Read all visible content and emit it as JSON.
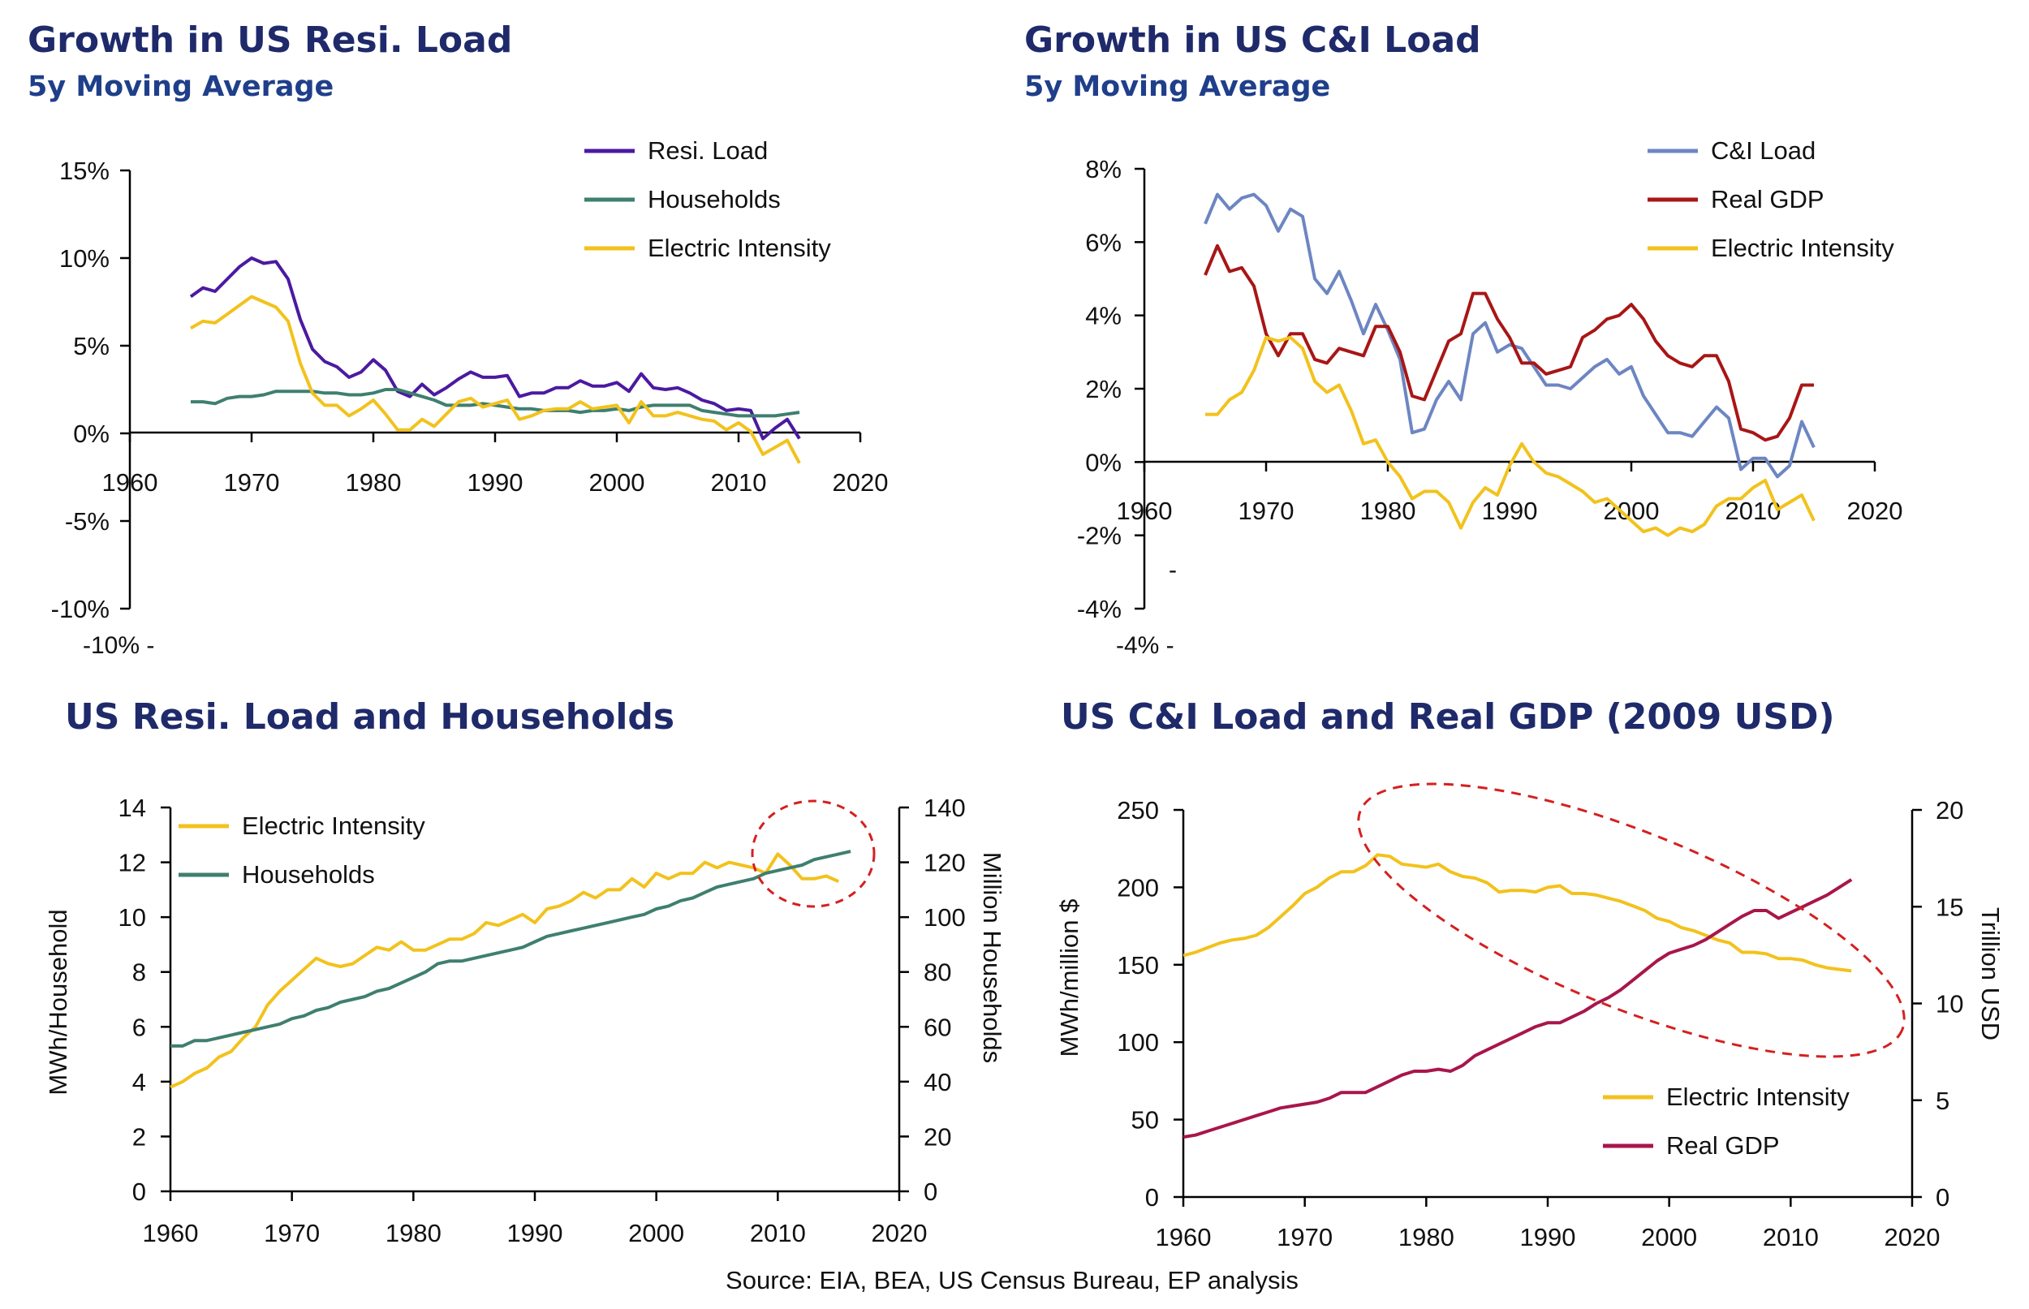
{
  "source": "Source: EIA, BEA, US Census Bureau, EP analysis",
  "colors": {
    "purple": "#4b1aa0",
    "teal": "#3f7f6f",
    "gold": "#f2c21d",
    "blue": "#6d86c2",
    "red": "#a81616",
    "crimson": "#a8164b",
    "title": "#1f2a6b",
    "circle": "#d42020"
  },
  "chart_data": [
    {
      "type": "line",
      "title": "Growth in US Resi. Load",
      "subtitle": "5y Moving Average",
      "xlim": [
        1960,
        2020
      ],
      "ylim": [
        -10,
        15
      ],
      "xticks": [
        "1960",
        "1970",
        "1980",
        "1990",
        "2000",
        "2010",
        "2020"
      ],
      "yticks": [
        "15%",
        "10%",
        "5%",
        "0%",
        "-5%",
        "-10%"
      ],
      "stray_label": "-10%  -",
      "legend": [
        "Resi. Load",
        "Households",
        "Electric Intensity"
      ],
      "series": [
        {
          "name": "Resi. Load",
          "color": "#4b1aa0",
          "x0": 1965,
          "values": [
            7.8,
            8.3,
            8.1,
            8.8,
            9.5,
            10.0,
            9.7,
            9.8,
            8.8,
            6.5,
            4.8,
            4.1,
            3.8,
            3.2,
            3.5,
            4.2,
            3.6,
            2.4,
            2.1,
            2.8,
            2.2,
            2.6,
            3.1,
            3.5,
            3.2,
            3.2,
            3.3,
            2.1,
            2.3,
            2.3,
            2.6,
            2.6,
            3.0,
            2.7,
            2.7,
            2.9,
            2.4,
            3.4,
            2.6,
            2.5,
            2.6,
            2.3,
            1.9,
            1.7,
            1.3,
            1.4,
            1.3,
            -0.3,
            0.3,
            0.8,
            -0.3
          ]
        },
        {
          "name": "Households",
          "color": "#3f7f6f",
          "x0": 1965,
          "values": [
            1.8,
            1.8,
            1.7,
            2.0,
            2.1,
            2.1,
            2.2,
            2.4,
            2.4,
            2.4,
            2.4,
            2.3,
            2.3,
            2.2,
            2.2,
            2.3,
            2.5,
            2.5,
            2.3,
            2.1,
            1.9,
            1.6,
            1.6,
            1.6,
            1.7,
            1.6,
            1.5,
            1.4,
            1.4,
            1.3,
            1.3,
            1.3,
            1.2,
            1.3,
            1.3,
            1.4,
            1.3,
            1.5,
            1.6,
            1.6,
            1.6,
            1.6,
            1.3,
            1.2,
            1.1,
            1.0,
            1.0,
            1.0,
            1.0,
            1.1,
            1.2
          ]
        },
        {
          "name": "Electric Intensity",
          "color": "#f2c21d",
          "x0": 1965,
          "values": [
            6.0,
            6.4,
            6.3,
            6.8,
            7.3,
            7.8,
            7.5,
            7.2,
            6.4,
            4.0,
            2.3,
            1.6,
            1.6,
            1.0,
            1.4,
            1.9,
            1.1,
            0.2,
            0.2,
            0.8,
            0.4,
            1.1,
            1.8,
            2.0,
            1.5,
            1.7,
            1.9,
            0.8,
            1.0,
            1.3,
            1.4,
            1.4,
            1.8,
            1.4,
            1.5,
            1.6,
            0.6,
            1.8,
            1.0,
            1.0,
            1.2,
            1.0,
            0.8,
            0.7,
            0.2,
            0.6,
            0.1,
            -1.2,
            -0.8,
            -0.4,
            -1.7
          ]
        }
      ]
    },
    {
      "type": "line",
      "title": "Growth in US C&I Load",
      "subtitle": "5y Moving Average",
      "xlim": [
        1960,
        2020
      ],
      "ylim": [
        -4,
        8
      ],
      "xticks": [
        "1960",
        "1970",
        "1980",
        "1990",
        "2000",
        "2010",
        "2020"
      ],
      "yticks": [
        "8%",
        "6%",
        "4%",
        "2%",
        "0%",
        "-2%",
        "-4%"
      ],
      "stray_label": "-4%  -",
      "legend": [
        "C&I Load",
        "Real GDP",
        "Electric Intensity"
      ],
      "series": [
        {
          "name": "C&I Load",
          "color": "#6d86c2",
          "x0": 1965,
          "values": [
            6.5,
            7.3,
            6.9,
            7.2,
            7.3,
            7.0,
            6.3,
            6.9,
            6.7,
            5.0,
            4.6,
            5.2,
            4.4,
            3.5,
            4.3,
            3.6,
            2.8,
            0.8,
            0.9,
            1.7,
            2.2,
            1.7,
            3.5,
            3.8,
            3.0,
            3.2,
            3.1,
            2.6,
            2.1,
            2.1,
            2.0,
            2.3,
            2.6,
            2.8,
            2.4,
            2.6,
            1.8,
            1.3,
            0.8,
            0.8,
            0.7,
            1.1,
            1.5,
            1.2,
            -0.2,
            0.1,
            0.1,
            -0.4,
            -0.1,
            1.1,
            0.4
          ]
        },
        {
          "name": "Real GDP",
          "color": "#a81616",
          "x0": 1965,
          "values": [
            5.1,
            5.9,
            5.2,
            5.3,
            4.8,
            3.5,
            2.9,
            3.5,
            3.5,
            2.8,
            2.7,
            3.1,
            3.0,
            2.9,
            3.7,
            3.7,
            3.0,
            1.8,
            1.7,
            2.5,
            3.3,
            3.5,
            4.6,
            4.6,
            3.9,
            3.4,
            2.7,
            2.7,
            2.4,
            2.5,
            2.6,
            3.4,
            3.6,
            3.9,
            4.0,
            4.3,
            3.9,
            3.3,
            2.9,
            2.7,
            2.6,
            2.9,
            2.9,
            2.2,
            0.9,
            0.8,
            0.6,
            0.7,
            1.2,
            2.1,
            2.1
          ]
        },
        {
          "name": "Electric Intensity",
          "color": "#f2c21d",
          "x0": 1965,
          "values": [
            1.3,
            1.3,
            1.7,
            1.9,
            2.5,
            3.4,
            3.3,
            3.4,
            3.1,
            2.2,
            1.9,
            2.1,
            1.4,
            0.5,
            0.6,
            0.0,
            -0.4,
            -1.0,
            -0.8,
            -0.8,
            -1.1,
            -1.8,
            -1.1,
            -0.7,
            -0.9,
            -0.1,
            0.5,
            0.0,
            -0.3,
            -0.4,
            -0.6,
            -0.8,
            -1.1,
            -1.0,
            -1.3,
            -1.6,
            -1.9,
            -1.8,
            -2.0,
            -1.8,
            -1.9,
            -1.7,
            -1.2,
            -1.0,
            -1.0,
            -0.7,
            -0.5,
            -1.3,
            -1.1,
            -0.9,
            -1.6
          ]
        }
      ]
    },
    {
      "type": "line",
      "title": "US Resi. Load and Households",
      "xlim": [
        1960,
        2020
      ],
      "ylim": [
        0,
        14
      ],
      "y2lim": [
        0,
        140
      ],
      "xticks": [
        "1960",
        "1970",
        "1980",
        "1990",
        "2000",
        "2010",
        "2020"
      ],
      "yticks": [
        "14",
        "12",
        "10",
        "8",
        "6",
        "4",
        "2",
        "0"
      ],
      "y2ticks": [
        "140",
        "120",
        "100",
        "80",
        "60",
        "40",
        "20",
        "0"
      ],
      "ylabel": "MWh/Household",
      "y2label": "Million Households",
      "legend": [
        "Electric Intensity",
        "Households"
      ],
      "series": [
        {
          "name": "Electric Intensity",
          "axis": "left",
          "color": "#f2c21d",
          "x0": 1960,
          "values": [
            3.8,
            4.0,
            4.3,
            4.5,
            4.9,
            5.1,
            5.6,
            6.0,
            6.8,
            7.3,
            7.7,
            8.1,
            8.5,
            8.3,
            8.2,
            8.3,
            8.6,
            8.9,
            8.8,
            9.1,
            8.8,
            8.8,
            9.0,
            9.2,
            9.2,
            9.4,
            9.8,
            9.7,
            9.9,
            10.1,
            9.8,
            10.3,
            10.4,
            10.6,
            10.9,
            10.7,
            11.0,
            11.0,
            11.4,
            11.1,
            11.6,
            11.4,
            11.6,
            11.6,
            12.0,
            11.8,
            12.0,
            11.9,
            11.8,
            11.6,
            12.3,
            11.9,
            11.4,
            11.4,
            11.5,
            11.3
          ]
        },
        {
          "name": "Households",
          "axis": "right",
          "color": "#3f7f6f",
          "x0": 1960,
          "values": [
            53,
            53,
            55,
            55,
            56,
            57,
            58,
            59,
            60,
            61,
            63,
            64,
            66,
            67,
            69,
            70,
            71,
            73,
            74,
            76,
            78,
            80,
            83,
            84,
            84,
            85,
            86,
            87,
            88,
            89,
            91,
            93,
            94,
            95,
            96,
            97,
            98,
            99,
            100,
            101,
            103,
            104,
            106,
            107,
            109,
            111,
            112,
            113,
            114,
            116,
            117,
            118,
            119,
            121,
            122,
            123,
            124
          ]
        }
      ]
    },
    {
      "type": "line",
      "title": "US C&I Load and Real GDP (2009 USD)",
      "xlim": [
        1960,
        2020
      ],
      "ylim": [
        0,
        250
      ],
      "y2lim": [
        0,
        20
      ],
      "xticks": [
        "1960",
        "1970",
        "1980",
        "1990",
        "2000",
        "2010",
        "2020"
      ],
      "yticks": [
        "250",
        "200",
        "150",
        "100",
        "50",
        "0"
      ],
      "y2ticks": [
        "20",
        "15",
        "10",
        "5",
        "0"
      ],
      "ylabel": "MWh/million $",
      "y2label": "Trillion USD",
      "legend": [
        "Electric Intensity",
        "Real GDP"
      ],
      "series": [
        {
          "name": "Electric Intensity",
          "axis": "left",
          "color": "#f2c21d",
          "x0": 1960,
          "values": [
            156,
            158,
            161,
            164,
            166,
            167,
            169,
            174,
            181,
            188,
            196,
            200,
            206,
            210,
            210,
            214,
            221,
            220,
            215,
            214,
            213,
            215,
            210,
            207,
            206,
            203,
            197,
            198,
            198,
            197,
            200,
            201,
            196,
            196,
            195,
            193,
            191,
            188,
            185,
            180,
            178,
            174,
            172,
            169,
            166,
            164,
            158,
            158,
            157,
            154,
            154,
            153,
            150,
            148,
            147,
            146
          ]
        },
        {
          "name": "Real GDP",
          "axis": "right",
          "color": "#a8164b",
          "x0": 1960,
          "values": [
            3.1,
            3.2,
            3.4,
            3.6,
            3.8,
            4.0,
            4.2,
            4.4,
            4.6,
            4.7,
            4.8,
            4.9,
            5.1,
            5.4,
            5.4,
            5.4,
            5.7,
            6.0,
            6.3,
            6.5,
            6.5,
            6.6,
            6.5,
            6.8,
            7.3,
            7.6,
            7.9,
            8.2,
            8.5,
            8.8,
            9.0,
            9.0,
            9.3,
            9.6,
            10.0,
            10.3,
            10.7,
            11.2,
            11.7,
            12.2,
            12.6,
            12.8,
            13.0,
            13.3,
            13.7,
            14.1,
            14.5,
            14.8,
            14.8,
            14.4,
            14.7,
            15.0,
            15.3,
            15.6,
            16.0,
            16.4
          ]
        }
      ]
    }
  ]
}
